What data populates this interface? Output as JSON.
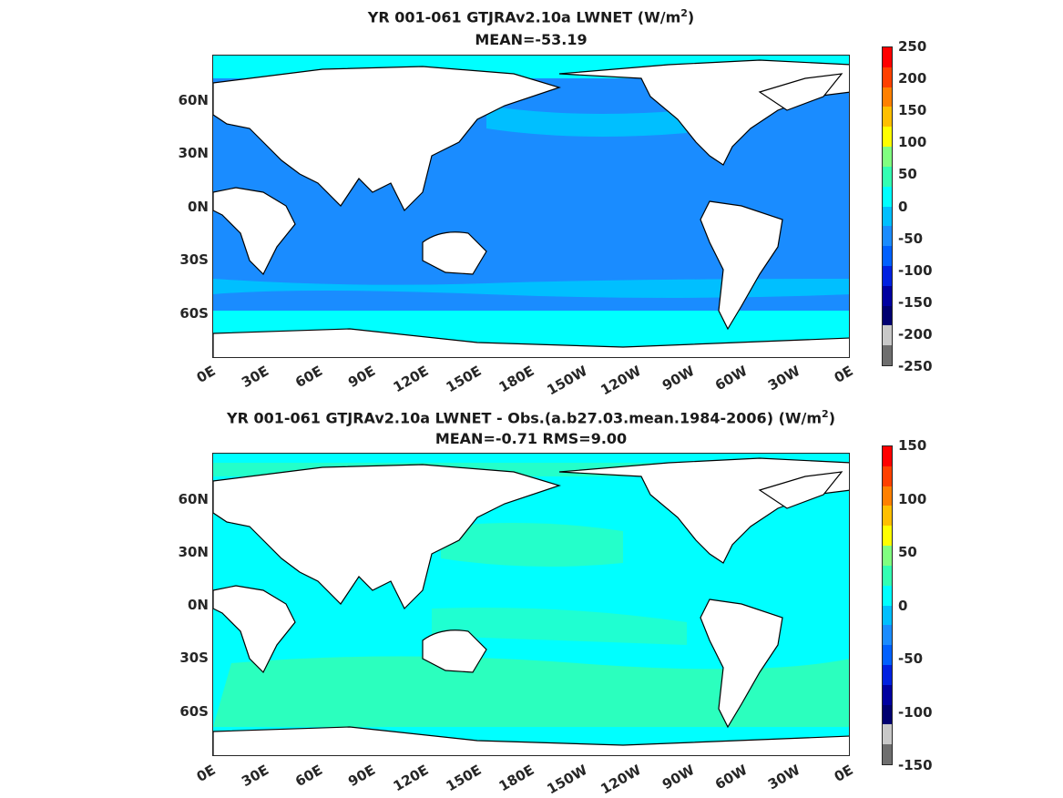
{
  "panel1": {
    "title_prefix": "YR 001-061 GTJRAv2.10a  LWNET (W/m",
    "title_sup": "2",
    "title_suffix": ")",
    "mean_line": "MEAN=-53.19",
    "colorbar_labels": [
      "250",
      "200",
      "150",
      "100",
      "50",
      "0",
      "-50",
      "-100",
      "-150",
      "-200",
      "-250"
    ]
  },
  "panel2": {
    "title_prefix": "YR 001-061 GTJRAv2.10a LWNET - Obs.(a.b27.03.mean.1984-2006) (W/m",
    "title_sup": "2",
    "title_suffix": ")",
    "mean_line": "MEAN=-0.71 RMS=9.00",
    "colorbar_labels": [
      "150",
      "100",
      "50",
      "0",
      "-50",
      "-100",
      "-150"
    ]
  },
  "lat_ticks": [
    "60N",
    "30N",
    "0N",
    "30S",
    "60S"
  ],
  "lon_ticks": [
    "0E",
    "30E",
    "60E",
    "90E",
    "120E",
    "150E",
    "180E",
    "150W",
    "120W",
    "90W",
    "60W",
    "30W",
    "0E"
  ],
  "colors": {
    "panel1_ocean": "#1a8cff",
    "panel1_polar": "#00ffff",
    "panel2_ocean": "#00ffff",
    "panel2_positive": "#33ffb3",
    "land": "#ffffff",
    "coast": "#000000",
    "colorbar": [
      "#ff0000",
      "#ff4000",
      "#ff8000",
      "#ffbf00",
      "#ffff00",
      "#80ff80",
      "#33ffb3",
      "#00ffff",
      "#00bfff",
      "#1a8cff",
      "#0060ff",
      "#0020e0",
      "#0000a0",
      "#000070",
      "#c8c8c8",
      "#6e6e6e"
    ]
  }
}
